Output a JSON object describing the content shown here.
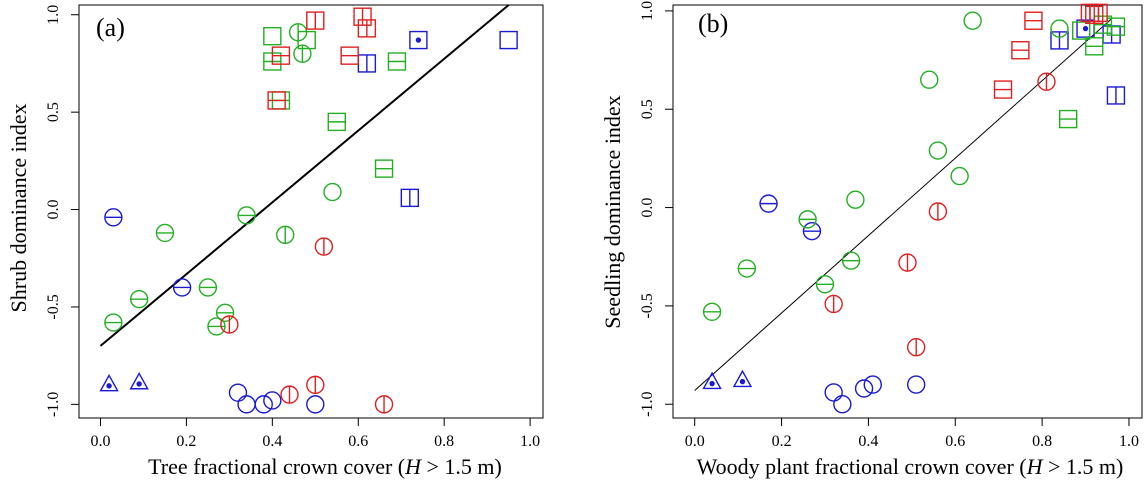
{
  "colors": {
    "blue": "#1a1ad6",
    "green": "#22b022",
    "red": "#e02020",
    "black": "#000000"
  },
  "chart_data": [
    {
      "type": "scatter",
      "panel_label": "(a)",
      "xlabel_pre": "Tree fractional crown cover (",
      "xlabel_var": "H",
      "xlabel_post": " > 1.5 m)",
      "ylabel": "Shrub dominance index",
      "xlim": [
        -0.05,
        1.03
      ],
      "ylim": [
        -1.07,
        1.05
      ],
      "xticks": [
        0.0,
        0.2,
        0.4,
        0.6,
        0.8,
        1.0
      ],
      "xtick_labels": [
        "0.0",
        "0.2",
        "0.4",
        "0.6",
        "0.8",
        "1.0"
      ],
      "yticks": [
        -1.0,
        -0.5,
        0.0,
        0.5,
        1.0
      ],
      "ytick_labels": [
        "-1.0",
        "-0.5",
        "0.0",
        "0.5",
        "1.0"
      ],
      "regression_line": {
        "x": [
          0.0,
          0.95
        ],
        "y": [
          -0.7,
          1.05
        ],
        "width": 2
      },
      "points": [
        {
          "x": 0.02,
          "y": -0.9,
          "shape": "triangle-dot",
          "color": "blue"
        },
        {
          "x": 0.09,
          "y": -0.89,
          "shape": "triangle-dot",
          "color": "blue"
        },
        {
          "x": 0.03,
          "y": -0.04,
          "shape": "circle-hline",
          "color": "blue"
        },
        {
          "x": 0.19,
          "y": -0.4,
          "shape": "circle-hline",
          "color": "blue"
        },
        {
          "x": 0.32,
          "y": -0.94,
          "shape": "circle",
          "color": "blue"
        },
        {
          "x": 0.34,
          "y": -1.0,
          "shape": "circle",
          "color": "blue"
        },
        {
          "x": 0.38,
          "y": -1.0,
          "shape": "circle",
          "color": "blue"
        },
        {
          "x": 0.4,
          "y": -0.98,
          "shape": "circle",
          "color": "blue"
        },
        {
          "x": 0.5,
          "y": -1.0,
          "shape": "circle",
          "color": "blue"
        },
        {
          "x": 0.62,
          "y": 0.75,
          "shape": "square-vline",
          "color": "blue"
        },
        {
          "x": 0.72,
          "y": 0.06,
          "shape": "square-vline",
          "color": "blue"
        },
        {
          "x": 0.74,
          "y": 0.87,
          "shape": "square-dot",
          "color": "blue"
        },
        {
          "x": 0.95,
          "y": 0.87,
          "shape": "square",
          "color": "blue"
        },
        {
          "x": 0.03,
          "y": -0.58,
          "shape": "circle-hline",
          "color": "green"
        },
        {
          "x": 0.09,
          "y": -0.46,
          "shape": "circle-hline",
          "color": "green"
        },
        {
          "x": 0.15,
          "y": -0.12,
          "shape": "circle-hline",
          "color": "green"
        },
        {
          "x": 0.25,
          "y": -0.4,
          "shape": "circle-hline",
          "color": "green"
        },
        {
          "x": 0.27,
          "y": -0.6,
          "shape": "circle-hline",
          "color": "green"
        },
        {
          "x": 0.29,
          "y": -0.53,
          "shape": "circle-hline",
          "color": "green"
        },
        {
          "x": 0.34,
          "y": -0.03,
          "shape": "circle-hline",
          "color": "green"
        },
        {
          "x": 0.43,
          "y": -0.13,
          "shape": "circle-vline",
          "color": "green"
        },
        {
          "x": 0.54,
          "y": 0.09,
          "shape": "circle",
          "color": "green"
        },
        {
          "x": 0.46,
          "y": 0.91,
          "shape": "circle-vline",
          "color": "green"
        },
        {
          "x": 0.47,
          "y": 0.8,
          "shape": "circle-vline",
          "color": "green"
        },
        {
          "x": 0.4,
          "y": 0.89,
          "shape": "square",
          "color": "green"
        },
        {
          "x": 0.4,
          "y": 0.76,
          "shape": "square-hline",
          "color": "green"
        },
        {
          "x": 0.48,
          "y": 0.87,
          "shape": "square",
          "color": "green"
        },
        {
          "x": 0.42,
          "y": 0.56,
          "shape": "square-hline",
          "color": "green"
        },
        {
          "x": 0.55,
          "y": 0.45,
          "shape": "square-hline",
          "color": "green"
        },
        {
          "x": 0.66,
          "y": 0.21,
          "shape": "square-hline",
          "color": "green"
        },
        {
          "x": 0.69,
          "y": 0.76,
          "shape": "square-hline",
          "color": "green"
        },
        {
          "x": 0.3,
          "y": -0.59,
          "shape": "circle-vline",
          "color": "red"
        },
        {
          "x": 0.44,
          "y": -0.95,
          "shape": "circle-vline",
          "color": "red"
        },
        {
          "x": 0.5,
          "y": -0.9,
          "shape": "circle-vline",
          "color": "red"
        },
        {
          "x": 0.52,
          "y": -0.19,
          "shape": "circle-vline",
          "color": "red"
        },
        {
          "x": 0.66,
          "y": -1.0,
          "shape": "circle-vline",
          "color": "red"
        },
        {
          "x": 0.41,
          "y": 0.56,
          "shape": "square-hline",
          "color": "red"
        },
        {
          "x": 0.42,
          "y": 0.79,
          "shape": "square-hline",
          "color": "red"
        },
        {
          "x": 0.5,
          "y": 0.97,
          "shape": "square-vline",
          "color": "red"
        },
        {
          "x": 0.58,
          "y": 0.79,
          "shape": "square-hline",
          "color": "red"
        },
        {
          "x": 0.61,
          "y": 0.99,
          "shape": "square-vline",
          "color": "red"
        },
        {
          "x": 0.62,
          "y": 0.93,
          "shape": "square-vline",
          "color": "red"
        }
      ]
    },
    {
      "type": "scatter",
      "panel_label": "(b)",
      "xlabel_pre": "Woody plant fractional crown cover (",
      "xlabel_var": "H",
      "xlabel_post": " > 1.5 m)",
      "ylabel": "Seedling dominance index",
      "xlim": [
        -0.05,
        1.03
      ],
      "ylim": [
        -1.07,
        1.03
      ],
      "xticks": [
        0.0,
        0.2,
        0.4,
        0.6,
        0.8,
        1.0
      ],
      "xtick_labels": [
        "0.0",
        "0.2",
        "0.4",
        "0.6",
        "0.8",
        "1.0"
      ],
      "yticks": [
        -1.0,
        -0.5,
        0.0,
        0.5,
        1.0
      ],
      "ytick_labels": [
        "-1.0",
        "-0.5",
        "0.0",
        "0.5",
        "1.0"
      ],
      "regression_line": {
        "x": [
          0.0,
          0.96
        ],
        "y": [
          -0.93,
          0.96
        ],
        "width": 1
      },
      "points": [
        {
          "x": 0.04,
          "y": -0.89,
          "shape": "triangle-dot",
          "color": "blue"
        },
        {
          "x": 0.11,
          "y": -0.88,
          "shape": "triangle-dot",
          "color": "blue"
        },
        {
          "x": 0.17,
          "y": 0.02,
          "shape": "circle-hline",
          "color": "blue"
        },
        {
          "x": 0.27,
          "y": -0.12,
          "shape": "circle-hline",
          "color": "blue"
        },
        {
          "x": 0.32,
          "y": -0.94,
          "shape": "circle",
          "color": "blue"
        },
        {
          "x": 0.34,
          "y": -1.0,
          "shape": "circle",
          "color": "blue"
        },
        {
          "x": 0.39,
          "y": -0.92,
          "shape": "circle",
          "color": "blue"
        },
        {
          "x": 0.41,
          "y": -0.9,
          "shape": "circle",
          "color": "blue"
        },
        {
          "x": 0.51,
          "y": -0.9,
          "shape": "circle",
          "color": "blue"
        },
        {
          "x": 0.84,
          "y": 0.85,
          "shape": "square-vline",
          "color": "blue"
        },
        {
          "x": 0.9,
          "y": 0.91,
          "shape": "square-dot",
          "color": "blue"
        },
        {
          "x": 0.96,
          "y": 0.88,
          "shape": "square-vline",
          "color": "blue"
        },
        {
          "x": 0.97,
          "y": 0.57,
          "shape": "square-vline",
          "color": "blue"
        },
        {
          "x": 0.04,
          "y": -0.53,
          "shape": "circle-hline",
          "color": "green"
        },
        {
          "x": 0.12,
          "y": -0.31,
          "shape": "circle-hline",
          "color": "green"
        },
        {
          "x": 0.26,
          "y": -0.06,
          "shape": "circle-hline",
          "color": "green"
        },
        {
          "x": 0.3,
          "y": -0.39,
          "shape": "circle-hline",
          "color": "green"
        },
        {
          "x": 0.36,
          "y": -0.27,
          "shape": "circle-hline",
          "color": "green"
        },
        {
          "x": 0.37,
          "y": 0.04,
          "shape": "circle",
          "color": "green"
        },
        {
          "x": 0.54,
          "y": 0.65,
          "shape": "circle",
          "color": "green"
        },
        {
          "x": 0.56,
          "y": 0.29,
          "shape": "circle",
          "color": "green"
        },
        {
          "x": 0.61,
          "y": 0.16,
          "shape": "circle",
          "color": "green"
        },
        {
          "x": 0.64,
          "y": 0.95,
          "shape": "circle",
          "color": "green"
        },
        {
          "x": 0.84,
          "y": 0.91,
          "shape": "circle",
          "color": "green"
        },
        {
          "x": 0.86,
          "y": 0.45,
          "shape": "square-hline",
          "color": "green"
        },
        {
          "x": 0.89,
          "y": 0.9,
          "shape": "square",
          "color": "green"
        },
        {
          "x": 0.92,
          "y": 0.82,
          "shape": "square-hline",
          "color": "green"
        },
        {
          "x": 0.94,
          "y": 0.93,
          "shape": "square-hline",
          "color": "green"
        },
        {
          "x": 0.97,
          "y": 0.92,
          "shape": "square-hline",
          "color": "green"
        },
        {
          "x": 0.32,
          "y": -0.49,
          "shape": "circle-vline",
          "color": "red"
        },
        {
          "x": 0.49,
          "y": -0.28,
          "shape": "circle-vline",
          "color": "red"
        },
        {
          "x": 0.51,
          "y": -0.71,
          "shape": "circle-vline",
          "color": "red"
        },
        {
          "x": 0.56,
          "y": -0.02,
          "shape": "circle-vline",
          "color": "red"
        },
        {
          "x": 0.81,
          "y": 0.64,
          "shape": "circle-vline",
          "color": "red"
        },
        {
          "x": 0.71,
          "y": 0.6,
          "shape": "square-hline",
          "color": "red"
        },
        {
          "x": 0.75,
          "y": 0.8,
          "shape": "square-hline",
          "color": "red"
        },
        {
          "x": 0.78,
          "y": 0.95,
          "shape": "square-hline",
          "color": "red"
        },
        {
          "x": 0.91,
          "y": 0.99,
          "shape": "square-vline",
          "color": "red"
        },
        {
          "x": 0.92,
          "y": 0.98,
          "shape": "square-vline",
          "color": "red"
        },
        {
          "x": 0.93,
          "y": 0.99,
          "shape": "square-vline",
          "color": "red"
        }
      ]
    }
  ]
}
